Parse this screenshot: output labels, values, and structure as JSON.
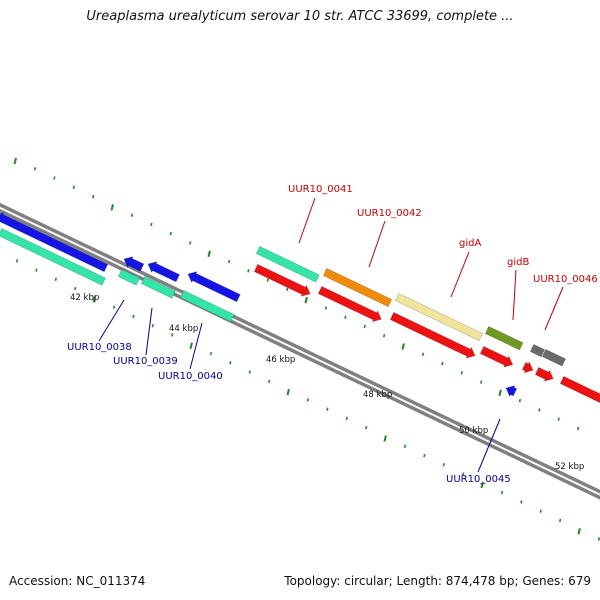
{
  "title": "Ureaplasma urealyticum serovar 10 str. ATCC 33699, complete ...",
  "footer": {
    "accession": "Accession: NC_011374",
    "summary": "Topology: circular; Length: 874,478 bp; Genes: 679"
  },
  "colors": {
    "backbone": "#808080",
    "tick": "#1f8a1f",
    "forward_label": "#cc0000",
    "reverse_label": "#0000aa",
    "blue": "#1414e6",
    "teal": "#33e6a8",
    "red": "#ee1111",
    "orange": "#f08c0a",
    "khaki": "#efe49a",
    "olive": "#6e9a23",
    "gray": "#6a6a6a"
  },
  "ruler": {
    "tick_labels": [
      "42 kbp",
      "44 kbp",
      "46 kbp",
      "48 kbp",
      "50 kbp",
      "52 kbp"
    ]
  },
  "genes_labeled": [
    {
      "name": "UUR10_0038",
      "strand": "reverse"
    },
    {
      "name": "UUR10_0039",
      "strand": "reverse"
    },
    {
      "name": "UUR10_0040",
      "strand": "reverse"
    },
    {
      "name": "UUR10_0041",
      "strand": "forward"
    },
    {
      "name": "UUR10_0042",
      "strand": "forward"
    },
    {
      "name": "gidA",
      "strand": "forward"
    },
    {
      "name": "gidB",
      "strand": "forward"
    },
    {
      "name": "UUR10_0046",
      "strand": "forward"
    },
    {
      "name": "UUR10_0045",
      "strand": "reverse"
    }
  ]
}
